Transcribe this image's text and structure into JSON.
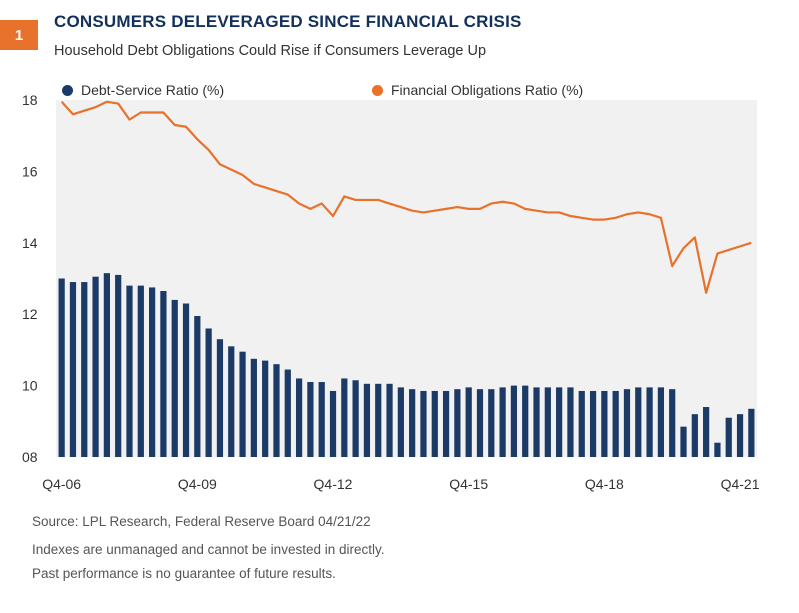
{
  "header": {
    "badge": "1",
    "title": "CONSUMERS DELEVERAGED SINCE FINANCIAL CRISIS",
    "subtitle": "Household Debt Obligations Could Rise if Consumers Leverage Up"
  },
  "footer": {
    "source": "Source: LPL Research, Federal Reserve Board  04/21/22",
    "note1": "Indexes are unmanaged and cannot be invested in directly.",
    "note2": "Past performance is no guarantee of future results."
  },
  "chart_data": {
    "type": "bar+line",
    "title": "",
    "xlabel": "",
    "ylabel": "",
    "ylim": [
      8,
      18
    ],
    "y_ticks": [
      "08",
      "10",
      "12",
      "14",
      "16",
      "18"
    ],
    "y_tick_values": [
      8,
      10,
      12,
      14,
      16,
      18
    ],
    "x_tick_labels": [
      "Q4-06",
      "Q4-09",
      "Q4-12",
      "Q4-15",
      "Q4-18",
      "Q4-21"
    ],
    "x_tick_indices": [
      0,
      12,
      24,
      36,
      48,
      60
    ],
    "grid": false,
    "legend_position": "top",
    "colors": {
      "debt_service": "#1b3a66",
      "financial_obligations": "#e8712b",
      "plot_bg": "#f1f1f1"
    },
    "series": [
      {
        "name": "Debt-Service Ratio (%)",
        "type": "bar",
        "values": [
          13.0,
          12.9,
          12.9,
          13.05,
          13.15,
          13.1,
          12.8,
          12.8,
          12.75,
          12.65,
          12.4,
          12.3,
          11.95,
          11.6,
          11.3,
          11.1,
          10.95,
          10.75,
          10.7,
          10.6,
          10.45,
          10.2,
          10.1,
          10.1,
          9.85,
          10.2,
          10.15,
          10.05,
          10.05,
          10.05,
          9.95,
          9.9,
          9.85,
          9.85,
          9.85,
          9.9,
          9.95,
          9.9,
          9.9,
          9.95,
          10.0,
          10.0,
          9.95,
          9.95,
          9.95,
          9.95,
          9.85,
          9.85,
          9.85,
          9.85,
          9.9,
          9.95,
          9.95,
          9.95,
          9.9,
          8.85,
          9.2,
          9.4,
          8.4,
          9.1,
          9.2,
          9.35
        ]
      },
      {
        "name": "Financial Obligations Ratio (%)",
        "type": "line",
        "values": [
          17.95,
          17.6,
          17.7,
          17.8,
          17.95,
          17.9,
          17.45,
          17.65,
          17.65,
          17.65,
          17.3,
          17.25,
          16.9,
          16.6,
          16.2,
          16.05,
          15.9,
          15.65,
          15.55,
          15.45,
          15.35,
          15.1,
          14.95,
          15.1,
          14.75,
          15.3,
          15.2,
          15.2,
          15.2,
          15.1,
          15.0,
          14.9,
          14.85,
          14.9,
          14.95,
          15.0,
          14.95,
          14.95,
          15.1,
          15.15,
          15.1,
          14.95,
          14.9,
          14.85,
          14.85,
          14.75,
          14.7,
          14.65,
          14.65,
          14.7,
          14.8,
          14.85,
          14.8,
          14.7,
          13.35,
          13.85,
          14.15,
          12.6,
          13.7,
          13.8,
          13.9,
          14.0
        ]
      }
    ]
  }
}
